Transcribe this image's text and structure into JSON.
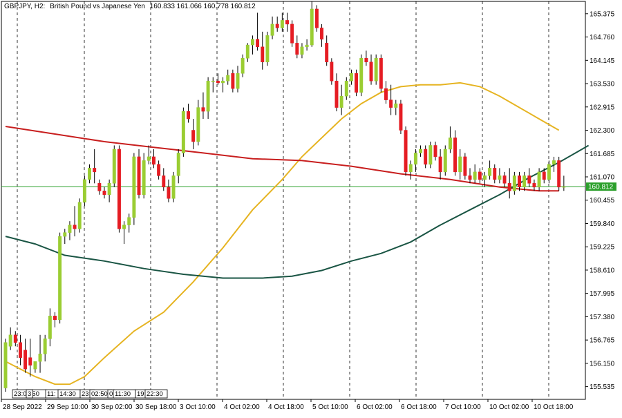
{
  "header": {
    "symbol": "GBPJPY, H2:",
    "description": "British Pound vs Japanese Yen",
    "ohlc": "160.833 161.066 160.778 160.812"
  },
  "chart_data": {
    "type": "candlestick",
    "ylim": [
      155.2,
      165.7
    ],
    "y_ticks": [
      165.375,
      164.76,
      164.145,
      163.53,
      162.915,
      162.3,
      161.685,
      161.07,
      160.455,
      159.84,
      159.225,
      158.61,
      157.995,
      157.38,
      156.765,
      156.15,
      155.535
    ],
    "current_price": 160.812,
    "current_price_label": "160.812",
    "x_labels": [
      "28 Sep 2022",
      "29 Sep 10:00",
      "30 Sep 02:00",
      "30 Sep 18:00",
      "3 Oct 10:00",
      "4 Oct 02:00",
      "4 Oct 18:00",
      "5 Oct 10:00",
      "6 Oct 02:00",
      "6 Oct 18:00",
      "7 Oct 10:00",
      "10 Oct 02:00",
      "10 Oct 18:00"
    ],
    "x_gap_labels": [
      "23:02:50",
      "3",
      "11:",
      "14:30",
      "23:",
      "02:50",
      "0",
      "11:30",
      "19:",
      "22:30"
    ],
    "candles": [
      {
        "o": 155.5,
        "h": 156.8,
        "l": 155.4,
        "c": 156.7
      },
      {
        "o": 156.6,
        "h": 157.1,
        "l": 156.5,
        "c": 156.9
      },
      {
        "o": 156.9,
        "h": 157.0,
        "l": 156.6,
        "c": 156.7
      },
      {
        "o": 156.7,
        "h": 156.9,
        "l": 156.1,
        "c": 156.3
      },
      {
        "o": 156.5,
        "h": 156.8,
        "l": 155.9,
        "c": 156.0
      },
      {
        "o": 156.3,
        "h": 156.8,
        "l": 155.8,
        "c": 156.1
      },
      {
        "o": 156.0,
        "h": 156.2,
        "l": 155.9,
        "c": 156.2
      },
      {
        "o": 156.2,
        "h": 156.9,
        "l": 155.9,
        "c": 156.4
      },
      {
        "o": 156.4,
        "h": 156.9,
        "l": 156.2,
        "c": 156.8
      },
      {
        "o": 156.8,
        "h": 157.6,
        "l": 156.6,
        "c": 157.4
      },
      {
        "o": 157.4,
        "h": 157.5,
        "l": 157.1,
        "c": 157.3
      },
      {
        "o": 157.3,
        "h": 159.6,
        "l": 157.2,
        "c": 159.5
      },
      {
        "o": 159.5,
        "h": 159.7,
        "l": 159.3,
        "c": 159.6
      },
      {
        "o": 159.6,
        "h": 159.9,
        "l": 159.4,
        "c": 159.8
      },
      {
        "o": 159.8,
        "h": 160.3,
        "l": 159.5,
        "c": 159.7
      },
      {
        "o": 159.7,
        "h": 160.5,
        "l": 159.6,
        "c": 160.4
      },
      {
        "o": 160.4,
        "h": 161.1,
        "l": 160.3,
        "c": 161.0
      },
      {
        "o": 161.0,
        "h": 161.4,
        "l": 160.9,
        "c": 161.3
      },
      {
        "o": 161.3,
        "h": 161.8,
        "l": 160.9,
        "c": 161.2
      },
      {
        "o": 160.9,
        "h": 161.0,
        "l": 160.6,
        "c": 160.7
      },
      {
        "o": 160.7,
        "h": 160.8,
        "l": 160.5,
        "c": 160.6
      },
      {
        "o": 160.6,
        "h": 161.0,
        "l": 160.4,
        "c": 160.9
      },
      {
        "o": 160.9,
        "h": 161.9,
        "l": 160.8,
        "c": 161.8
      },
      {
        "o": 161.8,
        "h": 161.9,
        "l": 159.6,
        "c": 159.7
      },
      {
        "o": 159.7,
        "h": 159.9,
        "l": 159.3,
        "c": 159.8
      },
      {
        "o": 159.8,
        "h": 160.1,
        "l": 159.6,
        "c": 160.0
      },
      {
        "o": 160.0,
        "h": 161.7,
        "l": 159.8,
        "c": 161.6
      },
      {
        "o": 161.6,
        "h": 161.8,
        "l": 160.5,
        "c": 160.6
      },
      {
        "o": 160.6,
        "h": 161.7,
        "l": 160.5,
        "c": 161.5
      },
      {
        "o": 161.5,
        "h": 161.9,
        "l": 161.4,
        "c": 161.6
      },
      {
        "o": 161.6,
        "h": 161.8,
        "l": 161.3,
        "c": 161.4
      },
      {
        "o": 161.4,
        "h": 161.5,
        "l": 161.0,
        "c": 161.1
      },
      {
        "o": 161.1,
        "h": 161.3,
        "l": 160.7,
        "c": 160.8
      },
      {
        "o": 160.8,
        "h": 161.0,
        "l": 160.4,
        "c": 160.5
      },
      {
        "o": 160.5,
        "h": 161.2,
        "l": 160.4,
        "c": 161.1
      },
      {
        "o": 161.1,
        "h": 161.8,
        "l": 160.9,
        "c": 161.7
      },
      {
        "o": 161.7,
        "h": 162.9,
        "l": 161.6,
        "c": 162.8
      },
      {
        "o": 162.8,
        "h": 163.0,
        "l": 162.5,
        "c": 162.6
      },
      {
        "o": 162.3,
        "h": 162.6,
        "l": 161.8,
        "c": 162.0
      },
      {
        "o": 162.0,
        "h": 163.1,
        "l": 161.9,
        "c": 162.9
      },
      {
        "o": 162.9,
        "h": 163.3,
        "l": 162.6,
        "c": 162.8
      },
      {
        "o": 162.8,
        "h": 163.7,
        "l": 162.6,
        "c": 163.6
      },
      {
        "o": 163.6,
        "h": 163.7,
        "l": 163.3,
        "c": 163.6
      },
      {
        "o": 163.6,
        "h": 163.8,
        "l": 163.5,
        "c": 163.55
      },
      {
        "o": 163.55,
        "h": 163.7,
        "l": 163.3,
        "c": 163.6
      },
      {
        "o": 163.6,
        "h": 163.9,
        "l": 163.5,
        "c": 163.75
      },
      {
        "o": 163.8,
        "h": 163.9,
        "l": 163.3,
        "c": 163.4
      },
      {
        "o": 163.4,
        "h": 164.0,
        "l": 163.3,
        "c": 163.8
      },
      {
        "o": 163.8,
        "h": 164.3,
        "l": 163.7,
        "c": 164.2
      },
      {
        "o": 164.2,
        "h": 164.6,
        "l": 164.1,
        "c": 164.55
      },
      {
        "o": 164.55,
        "h": 164.8,
        "l": 164.3,
        "c": 164.7
      },
      {
        "o": 164.7,
        "h": 165.4,
        "l": 164.4,
        "c": 164.5
      },
      {
        "o": 164.5,
        "h": 164.9,
        "l": 163.9,
        "c": 164.1
      },
      {
        "o": 164.1,
        "h": 164.9,
        "l": 164.0,
        "c": 164.8
      },
      {
        "o": 164.8,
        "h": 165.3,
        "l": 164.7,
        "c": 165.1
      },
      {
        "o": 165.1,
        "h": 165.3,
        "l": 164.9,
        "c": 165.0
      },
      {
        "o": 165.0,
        "h": 165.4,
        "l": 164.9,
        "c": 165.2
      },
      {
        "o": 165.2,
        "h": 165.4,
        "l": 164.9,
        "c": 165.1
      },
      {
        "o": 165.1,
        "h": 165.2,
        "l": 164.5,
        "c": 164.6
      },
      {
        "o": 164.6,
        "h": 164.8,
        "l": 164.2,
        "c": 164.3
      },
      {
        "o": 164.3,
        "h": 164.6,
        "l": 164.2,
        "c": 164.5
      },
      {
        "o": 164.5,
        "h": 164.7,
        "l": 164.4,
        "c": 164.55
      },
      {
        "o": 164.55,
        "h": 165.7,
        "l": 164.5,
        "c": 165.5
      },
      {
        "o": 165.5,
        "h": 165.6,
        "l": 164.9,
        "c": 165.0
      },
      {
        "o": 165.0,
        "h": 165.1,
        "l": 164.5,
        "c": 164.7
      },
      {
        "o": 164.6,
        "h": 164.8,
        "l": 164.0,
        "c": 164.1
      },
      {
        "o": 164.1,
        "h": 164.2,
        "l": 163.5,
        "c": 163.6
      },
      {
        "o": 163.6,
        "h": 163.8,
        "l": 162.8,
        "c": 162.9
      },
      {
        "o": 162.9,
        "h": 163.5,
        "l": 162.7,
        "c": 163.2
      },
      {
        "o": 163.2,
        "h": 163.7,
        "l": 163.1,
        "c": 163.6
      },
      {
        "o": 163.6,
        "h": 163.9,
        "l": 163.5,
        "c": 163.8
      },
      {
        "o": 163.8,
        "h": 163.9,
        "l": 163.2,
        "c": 163.3
      },
      {
        "o": 163.3,
        "h": 164.3,
        "l": 163.2,
        "c": 164.2
      },
      {
        "o": 164.2,
        "h": 164.4,
        "l": 164.0,
        "c": 164.1
      },
      {
        "o": 164.1,
        "h": 164.3,
        "l": 163.5,
        "c": 163.6
      },
      {
        "o": 163.6,
        "h": 164.3,
        "l": 163.5,
        "c": 164.2
      },
      {
        "o": 164.2,
        "h": 164.3,
        "l": 163.3,
        "c": 163.4
      },
      {
        "o": 163.4,
        "h": 163.6,
        "l": 163.0,
        "c": 163.1
      },
      {
        "o": 163.1,
        "h": 163.5,
        "l": 162.7,
        "c": 162.9
      },
      {
        "o": 162.9,
        "h": 163.1,
        "l": 162.7,
        "c": 163.0
      },
      {
        "o": 163.0,
        "h": 163.1,
        "l": 162.2,
        "c": 162.3
      },
      {
        "o": 162.3,
        "h": 162.4,
        "l": 161.1,
        "c": 161.2
      },
      {
        "o": 161.2,
        "h": 161.5,
        "l": 161.0,
        "c": 161.4
      },
      {
        "o": 161.4,
        "h": 161.8,
        "l": 161.2,
        "c": 161.7
      },
      {
        "o": 161.7,
        "h": 161.9,
        "l": 161.6,
        "c": 161.8
      },
      {
        "o": 161.8,
        "h": 161.9,
        "l": 161.3,
        "c": 161.4
      },
      {
        "o": 161.4,
        "h": 162.0,
        "l": 161.3,
        "c": 161.9
      },
      {
        "o": 161.9,
        "h": 162.0,
        "l": 161.5,
        "c": 161.6
      },
      {
        "o": 161.6,
        "h": 161.8,
        "l": 161.0,
        "c": 161.2
      },
      {
        "o": 161.2,
        "h": 161.9,
        "l": 161.1,
        "c": 161.8
      },
      {
        "o": 161.8,
        "h": 162.4,
        "l": 161.7,
        "c": 162.1
      },
      {
        "o": 162.1,
        "h": 162.3,
        "l": 161.1,
        "c": 161.2
      },
      {
        "o": 161.2,
        "h": 161.8,
        "l": 161.0,
        "c": 161.6
      },
      {
        "o": 161.6,
        "h": 161.7,
        "l": 161.0,
        "c": 161.1
      },
      {
        "o": 161.1,
        "h": 161.3,
        "l": 160.9,
        "c": 161.0
      },
      {
        "o": 161.0,
        "h": 161.4,
        "l": 160.9,
        "c": 161.2
      },
      {
        "o": 161.2,
        "h": 161.3,
        "l": 160.9,
        "c": 161.0
      },
      {
        "o": 161.0,
        "h": 161.2,
        "l": 160.8,
        "c": 161.1
      },
      {
        "o": 161.1,
        "h": 161.5,
        "l": 161.0,
        "c": 161.3
      },
      {
        "o": 161.3,
        "h": 161.4,
        "l": 160.9,
        "c": 161.0
      },
      {
        "o": 161.0,
        "h": 161.3,
        "l": 160.9,
        "c": 161.1
      },
      {
        "o": 161.1,
        "h": 161.2,
        "l": 160.8,
        "c": 160.9
      },
      {
        "o": 160.9,
        "h": 161.3,
        "l": 160.5,
        "c": 160.7
      },
      {
        "o": 160.7,
        "h": 161.2,
        "l": 160.6,
        "c": 161.1
      },
      {
        "o": 161.1,
        "h": 161.2,
        "l": 160.7,
        "c": 160.8
      },
      {
        "o": 160.8,
        "h": 161.2,
        "l": 160.7,
        "c": 161.1
      },
      {
        "o": 161.1,
        "h": 161.3,
        "l": 160.8,
        "c": 160.9
      },
      {
        "o": 160.9,
        "h": 161.0,
        "l": 160.7,
        "c": 160.8
      },
      {
        "o": 160.8,
        "h": 161.3,
        "l": 160.7,
        "c": 161.2
      },
      {
        "o": 161.2,
        "h": 161.3,
        "l": 160.9,
        "c": 161.0
      },
      {
        "o": 161.0,
        "h": 161.5,
        "l": 160.9,
        "c": 161.4
      },
      {
        "o": 161.4,
        "h": 161.6,
        "l": 161.2,
        "c": 161.5
      },
      {
        "o": 161.5,
        "h": 161.6,
        "l": 160.7,
        "c": 160.8
      },
      {
        "o": 160.8,
        "h": 161.1,
        "l": 160.7,
        "c": 160.812
      }
    ],
    "ma_lines": [
      {
        "color": "#e6b422",
        "points": [
          [
            0,
            156.2
          ],
          [
            6,
            155.8
          ],
          [
            10,
            155.6
          ],
          [
            13,
            155.6
          ],
          [
            16,
            155.8
          ],
          [
            20,
            156.3
          ],
          [
            26,
            157.0
          ],
          [
            32,
            157.5
          ],
          [
            38,
            158.3
          ],
          [
            44,
            159.2
          ],
          [
            50,
            160.2
          ],
          [
            56,
            161.0
          ],
          [
            60,
            161.6
          ],
          [
            64,
            162.1
          ],
          [
            68,
            162.6
          ],
          [
            72,
            163.0
          ],
          [
            76,
            163.3
          ],
          [
            80,
            163.45
          ],
          [
            84,
            163.5
          ],
          [
            88,
            163.5
          ],
          [
            92,
            163.55
          ],
          [
            96,
            163.45
          ],
          [
            100,
            163.2
          ],
          [
            104,
            162.9
          ],
          [
            108,
            162.6
          ],
          [
            112,
            162.3
          ]
        ]
      },
      {
        "color": "#c81e1e",
        "points": [
          [
            0,
            162.4
          ],
          [
            10,
            162.2
          ],
          [
            20,
            162.0
          ],
          [
            30,
            161.85
          ],
          [
            40,
            161.7
          ],
          [
            50,
            161.55
          ],
          [
            60,
            161.5
          ],
          [
            70,
            161.35
          ],
          [
            80,
            161.15
          ],
          [
            90,
            161.0
          ],
          [
            100,
            160.8
          ],
          [
            108,
            160.7
          ],
          [
            112,
            160.7
          ]
        ]
      },
      {
        "color": "#1a5544",
        "points": [
          [
            0,
            159.5
          ],
          [
            6,
            159.3
          ],
          [
            12,
            159.0
          ],
          [
            20,
            158.85
          ],
          [
            28,
            158.65
          ],
          [
            36,
            158.5
          ],
          [
            44,
            158.4
          ],
          [
            52,
            158.4
          ],
          [
            58,
            158.45
          ],
          [
            64,
            158.6
          ],
          [
            70,
            158.85
          ],
          [
            76,
            159.05
          ],
          [
            82,
            159.35
          ],
          [
            88,
            159.8
          ],
          [
            94,
            160.2
          ],
          [
            100,
            160.6
          ],
          [
            106,
            161.05
          ],
          [
            112,
            161.45
          ],
          [
            116,
            161.75
          ],
          [
            118,
            161.9
          ]
        ]
      }
    ]
  }
}
